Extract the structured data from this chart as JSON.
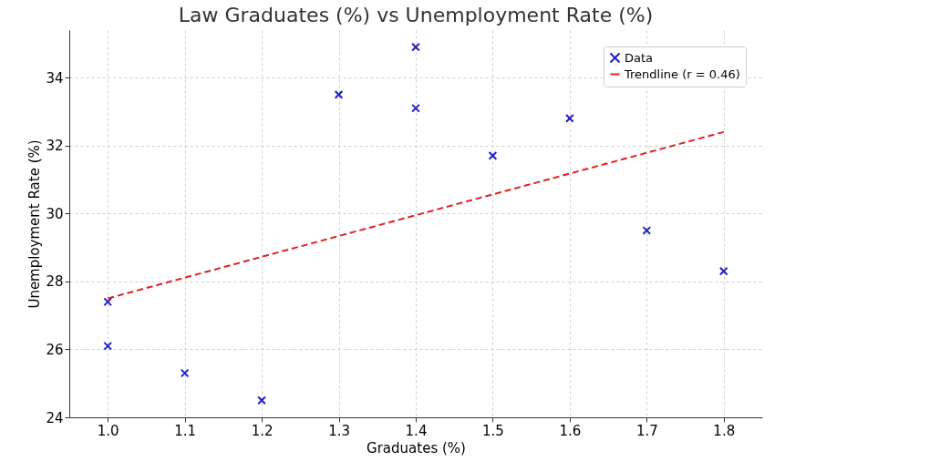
{
  "chart_data": {
    "type": "scatter",
    "title": "Law Graduates (%) vs Unemployment Rate (%)",
    "xlabel": "Graduates (%)",
    "ylabel": "Unemployment Rate (%)",
    "xlim": [
      0.95,
      1.85
    ],
    "xticks": [
      {
        "value": 1.0,
        "label": "1.0"
      },
      1.1,
      1.2,
      1.3,
      1.4,
      1.5,
      1.6,
      1.7,
      1.8
    ],
    "ylim": [
      24,
      35.4
    ],
    "yticks": [
      24,
      26,
      28,
      30,
      32,
      34
    ],
    "grid": true,
    "legend": "top right",
    "series": [
      {
        "name": "Data",
        "marker": "cross",
        "color": "#1f1fcc",
        "x": [
          1.0,
          1.0,
          1.1,
          1.2,
          1.3,
          1.4,
          1.4,
          1.5,
          1.6,
          1.7,
          1.8
        ],
        "values": [
          27.4,
          26.1,
          25.3,
          24.5,
          33.5,
          34.9,
          33.1,
          31.7,
          32.8,
          29.5,
          28.3
        ]
      },
      {
        "name": "Trendline (r = 0.46)",
        "type": "line",
        "color": "#e02020",
        "line_style": "dashed",
        "x": [
          1.0,
          1.8
        ],
        "values": [
          27.5,
          32.4
        ]
      }
    ]
  }
}
